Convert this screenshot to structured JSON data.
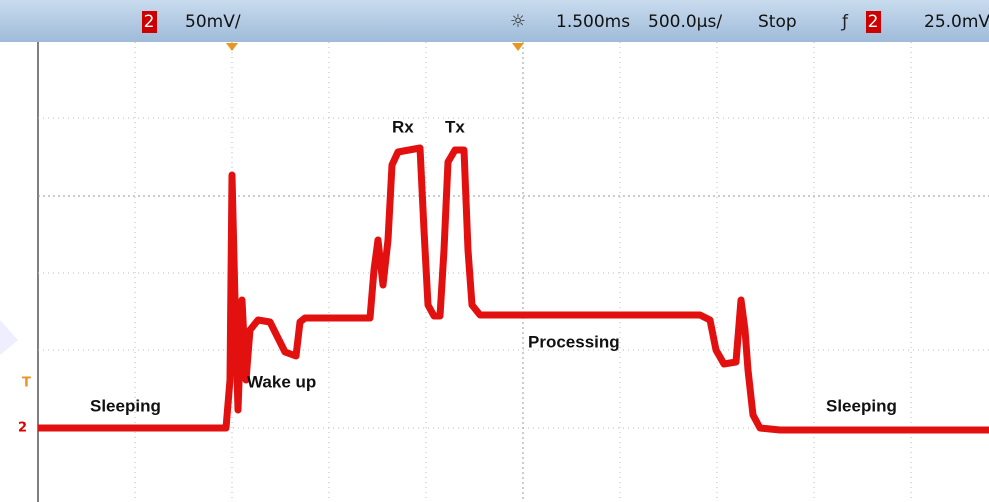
{
  "header": {
    "channel": "2",
    "scale": "50mV/",
    "delay": "1.500ms",
    "timebase": "500.0µs/",
    "status": "Stop",
    "trigger_channel": "2",
    "trigger_level": "25.0mV"
  },
  "markers": {
    "trigger": "T",
    "channel": "2"
  },
  "annotations": {
    "sleeping_left": "Sleeping",
    "wake_up": "Wake up",
    "rx": "Rx",
    "tx": "Tx",
    "processing": "Processing",
    "sleeping_right": "Sleeping"
  }
}
